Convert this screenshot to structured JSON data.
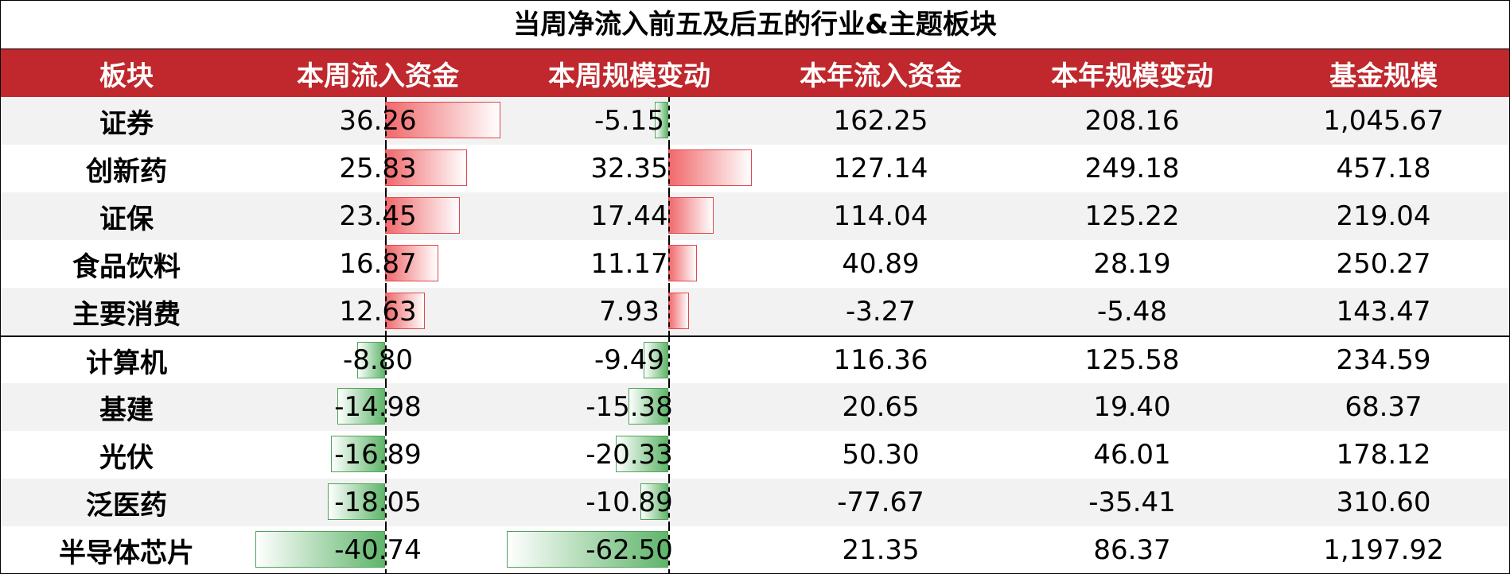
{
  "title": "当周净流入前五及后五的行业&主题板块",
  "table": {
    "columns": [
      "板块",
      "本周流入资金",
      "本周规模变动",
      "本年流入资金",
      "本年规模变动",
      "基金规模"
    ],
    "rows": [
      [
        "证券",
        "36.26",
        "-5.15",
        "162.25",
        "208.16",
        "1,045.67"
      ],
      [
        "创新药",
        "25.83",
        "32.35",
        "127.14",
        "249.18",
        "457.18"
      ],
      [
        "证保",
        "23.45",
        "17.44",
        "114.04",
        "125.22",
        "219.04"
      ],
      [
        "食品饮料",
        "16.87",
        "11.17",
        "40.89",
        "28.19",
        "250.27"
      ],
      [
        "主要消费",
        "12.63",
        "7.93",
        "-3.27",
        "-5.48",
        "143.47"
      ],
      [
        "计算机",
        "-8.80",
        "-9.49",
        "116.36",
        "125.58",
        "234.59"
      ],
      [
        "基建",
        "-14.98",
        "-15.38",
        "20.65",
        "19.40",
        "68.37"
      ],
      [
        "光伏",
        "-16.89",
        "-20.33",
        "50.30",
        "46.01",
        "178.12"
      ],
      [
        "泛医药",
        "-18.05",
        "-10.89",
        "-77.67",
        "-35.41",
        "310.60"
      ],
      [
        "半导体芯片",
        "-40.74",
        "-62.50",
        "21.35",
        "86.37",
        "1,197.92"
      ]
    ]
  }
}
